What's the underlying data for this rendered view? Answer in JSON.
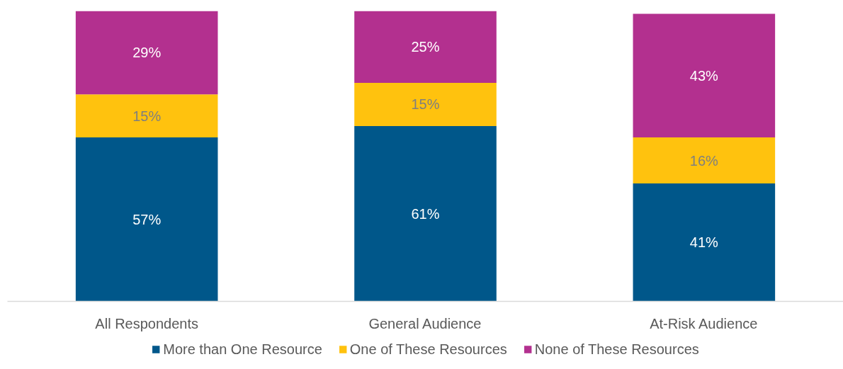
{
  "chart_data": {
    "type": "bar",
    "stacked": true,
    "categories": [
      "All Respondents",
      "General Audience",
      "At-Risk Audience"
    ],
    "series": [
      {
        "name": "More than One Resource",
        "color": "#00578a",
        "values": [
          57,
          61,
          41
        ],
        "value_labels": [
          "57%",
          "61%",
          "41%"
        ]
      },
      {
        "name": "One of These Resources",
        "color": "#ffc20e",
        "values": [
          15,
          15,
          16
        ],
        "value_labels": [
          "15%",
          "15%",
          "16%"
        ]
      },
      {
        "name": "None of These Resources",
        "color": "#b3308f",
        "values": [
          29,
          25,
          43
        ],
        "value_labels": [
          "29%",
          "25%",
          "43%"
        ]
      }
    ],
    "legend": "bottom"
  }
}
